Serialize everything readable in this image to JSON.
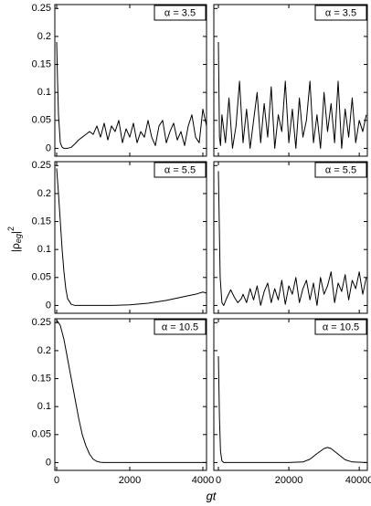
{
  "ylabel_parts": [
    "|ρ",
    "eg",
    "|",
    "2"
  ],
  "xlabel": "gt",
  "chart_data": [
    {
      "type": "line",
      "annotation": "α = 3.5",
      "color": "#000000",
      "xtick_labels": false,
      "ytick_labels": true,
      "xlim": [
        -50,
        4100
      ],
      "ylim": [
        -0.014,
        0.257
      ],
      "xticks": [
        0,
        2000,
        4000
      ],
      "yticks": [
        0,
        0.05,
        0.1,
        0.15,
        0.2,
        0.25
      ],
      "x": [
        0,
        25,
        50,
        100,
        150,
        200,
        300,
        400,
        500,
        600,
        700,
        800,
        900,
        1000,
        1100,
        1200,
        1300,
        1400,
        1500,
        1600,
        1700,
        1800,
        1900,
        2000,
        2100,
        2200,
        2300,
        2400,
        2500,
        2600,
        2700,
        2800,
        2900,
        3000,
        3100,
        3200,
        3300,
        3400,
        3500,
        3600,
        3700,
        3800,
        3900,
        4000,
        4100
      ],
      "values": [
        0.19,
        0.12,
        0.06,
        0.01,
        0.002,
        0,
        0,
        0.002,
        0.008,
        0.015,
        0.02,
        0.025,
        0.03,
        0.025,
        0.04,
        0.02,
        0.045,
        0.015,
        0.04,
        0.03,
        0.05,
        0.01,
        0.035,
        0.02,
        0.045,
        0.01,
        0.03,
        0.02,
        0.05,
        0.02,
        0.005,
        0.04,
        0.05,
        0.01,
        0.03,
        0.045,
        0.015,
        0.03,
        0.005,
        0.04,
        0.06,
        0.02,
        0.01,
        0.07,
        0.04
      ]
    },
    {
      "type": "line",
      "annotation": "α = 3.5",
      "color": "#000000",
      "xtick_labels": false,
      "ytick_labels": false,
      "xlim": [
        -1300,
        42300
      ],
      "ylim": [
        -0.014,
        0.257
      ],
      "xticks": [
        0,
        20000,
        40000
      ],
      "yticks": [
        0,
        0.05,
        0.1,
        0.15,
        0.2,
        0.25
      ],
      "x": [
        0,
        300,
        600,
        1000,
        2000,
        3000,
        4000,
        5000,
        6000,
        7000,
        8000,
        9000,
        10000,
        11000,
        12000,
        13000,
        14000,
        15000,
        16000,
        17000,
        18000,
        19000,
        20000,
        21000,
        22000,
        23000,
        24000,
        25000,
        26000,
        27000,
        28000,
        29000,
        30000,
        31000,
        32000,
        33000,
        34000,
        35000,
        36000,
        37000,
        38000,
        39000,
        40000,
        41000,
        42000
      ],
      "values": [
        0.19,
        0.02,
        0.005,
        0.06,
        0.01,
        0.09,
        0,
        0.04,
        0.12,
        0.01,
        0.07,
        0,
        0.05,
        0.1,
        0.01,
        0.08,
        0.02,
        0.11,
        0,
        0.06,
        0.03,
        0.12,
        0.01,
        0.07,
        0,
        0.09,
        0.02,
        0.05,
        0.12,
        0.01,
        0.06,
        0,
        0.1,
        0.03,
        0.08,
        0.01,
        0.12,
        0,
        0.07,
        0.02,
        0.09,
        0.01,
        0.05,
        0.03,
        0.06
      ]
    },
    {
      "type": "line",
      "annotation": "α = 5.5",
      "color": "#000000",
      "xtick_labels": false,
      "ytick_labels": true,
      "xlim": [
        -50,
        4100
      ],
      "ylim": [
        -0.014,
        0.257
      ],
      "xticks": [
        0,
        2000,
        4000
      ],
      "yticks": [
        0,
        0.05,
        0.1,
        0.15,
        0.2,
        0.25
      ],
      "x": [
        0,
        50,
        100,
        150,
        200,
        250,
        300,
        400,
        500,
        1000,
        1500,
        2000,
        2500,
        3000,
        3500,
        3800,
        4000,
        4100
      ],
      "values": [
        0.245,
        0.2,
        0.15,
        0.1,
        0.06,
        0.03,
        0.012,
        0.002,
        0,
        0,
        0,
        0.001,
        0.004,
        0.009,
        0.016,
        0.02,
        0.024,
        0.022
      ]
    },
    {
      "type": "line",
      "annotation": "α = 5.5",
      "color": "#000000",
      "xtick_labels": false,
      "ytick_labels": false,
      "xlim": [
        -1300,
        42300
      ],
      "ylim": [
        -0.014,
        0.257
      ],
      "xticks": [
        0,
        20000,
        40000
      ],
      "yticks": [
        0,
        0.05,
        0.1,
        0.15,
        0.2,
        0.25
      ],
      "x": [
        0,
        500,
        1000,
        1500,
        2500,
        3500,
        4500,
        5500,
        6500,
        7000,
        8000,
        9000,
        10000,
        11000,
        12000,
        13000,
        14000,
        15000,
        16000,
        17000,
        18000,
        19000,
        20000,
        21000,
        22000,
        23000,
        24000,
        25000,
        26000,
        27000,
        28000,
        29000,
        30000,
        31000,
        32000,
        33000,
        34000,
        35000,
        36000,
        37000,
        38000,
        39000,
        40000,
        41000,
        42000
      ],
      "values": [
        0.24,
        0.05,
        0.005,
        0,
        0.015,
        0.028,
        0.015,
        0.005,
        0.012,
        0.02,
        0.005,
        0.03,
        0.01,
        0.035,
        0,
        0.025,
        0.04,
        0.005,
        0.03,
        0.01,
        0.045,
        0.002,
        0.035,
        0.02,
        0.05,
        0.005,
        0.03,
        0.045,
        0.01,
        0.04,
        0,
        0.05,
        0.02,
        0.035,
        0.06,
        0.005,
        0.04,
        0.025,
        0.055,
        0.01,
        0.045,
        0.03,
        0.06,
        0.02,
        0.05
      ]
    },
    {
      "type": "line",
      "annotation": "α = 10.5",
      "color": "#000000",
      "xtick_labels": true,
      "ytick_labels": true,
      "xlim": [
        -50,
        4100
      ],
      "ylim": [
        -0.014,
        0.257
      ],
      "xticks": [
        0,
        2000,
        4000
      ],
      "yticks": [
        0,
        0.05,
        0.1,
        0.15,
        0.2,
        0.25
      ],
      "x": [
        0,
        100,
        200,
        300,
        400,
        500,
        600,
        700,
        800,
        900,
        1000,
        1100,
        1200,
        1300,
        2000,
        3000,
        4100
      ],
      "values": [
        0.255,
        0.245,
        0.22,
        0.185,
        0.15,
        0.115,
        0.08,
        0.05,
        0.03,
        0.015,
        0.006,
        0.002,
        0.0005,
        0,
        0,
        0,
        0
      ]
    },
    {
      "type": "line",
      "annotation": "α = 10.5",
      "color": "#000000",
      "xtick_labels": true,
      "ytick_labels": false,
      "xlim": [
        -1300,
        42300
      ],
      "ylim": [
        -0.014,
        0.257
      ],
      "xticks": [
        0,
        20000,
        40000
      ],
      "yticks": [
        0,
        0.05,
        0.1,
        0.15,
        0.2,
        0.25
      ],
      "x": [
        0,
        300,
        600,
        1000,
        1500,
        5000,
        20000,
        24000,
        26000,
        28000,
        30000,
        31000,
        32000,
        34000,
        36000,
        38000,
        42000
      ],
      "values": [
        0.19,
        0.08,
        0.02,
        0.003,
        0,
        0,
        0,
        0.001,
        0.006,
        0.016,
        0.025,
        0.027,
        0.025,
        0.015,
        0.005,
        0.001,
        0
      ]
    }
  ]
}
